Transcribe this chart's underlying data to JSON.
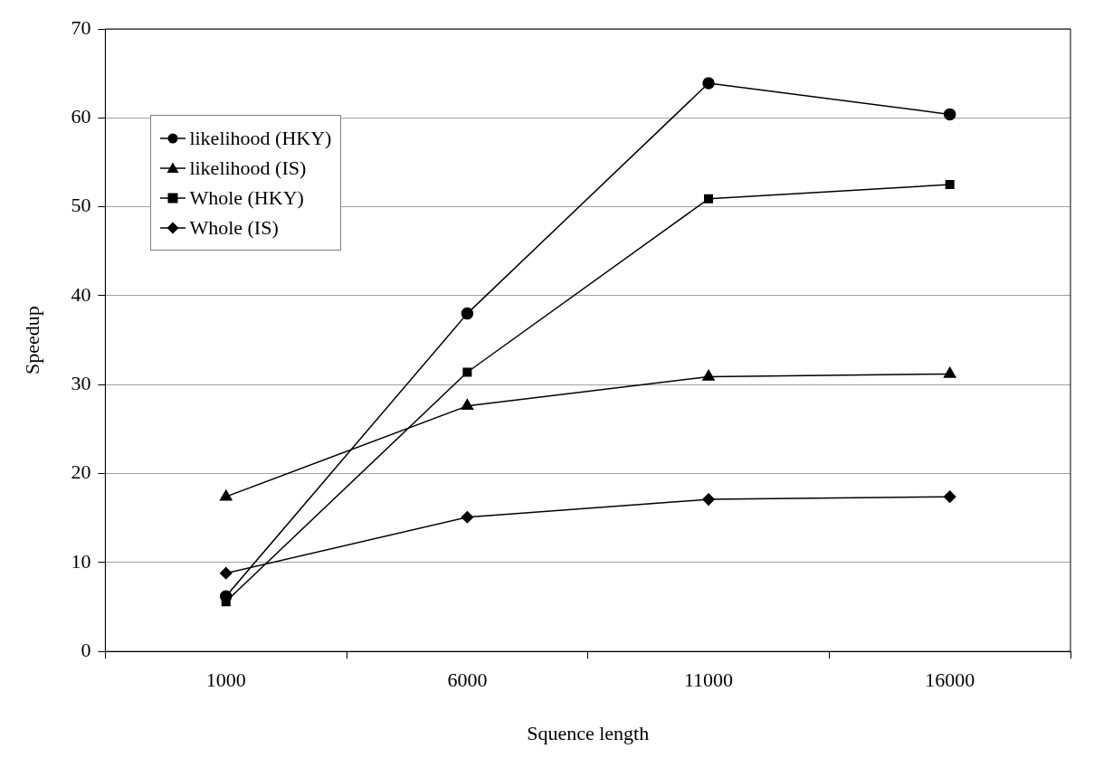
{
  "chart_data": {
    "type": "line",
    "xlabel": "Squence length",
    "ylabel": "Speedup",
    "categories": [
      "1000",
      "6000",
      "11000",
      "16000"
    ],
    "ylim": [
      0,
      70
    ],
    "yticks": [
      0,
      10,
      20,
      30,
      40,
      50,
      60,
      70
    ],
    "grid": "y",
    "legend": "top left",
    "line_style": "solid",
    "series": [
      {
        "name": "likelihood (HKY)",
        "color": "#000000",
        "marker": "circle",
        "values": [
          6.2,
          38.0,
          63.9,
          60.4
        ]
      },
      {
        "name": "likelihood (IS)",
        "color": "#000000",
        "marker": "triangle",
        "values": [
          17.4,
          27.6,
          30.9,
          31.2
        ]
      },
      {
        "name": "Whole (HKY)",
        "color": "#000000",
        "marker": "square",
        "values": [
          5.6,
          31.4,
          50.9,
          52.5
        ]
      },
      {
        "name": "Whole (IS)",
        "color": "#000000",
        "marker": "diamond",
        "values": [
          8.8,
          15.1,
          17.1,
          17.4
        ]
      }
    ]
  }
}
